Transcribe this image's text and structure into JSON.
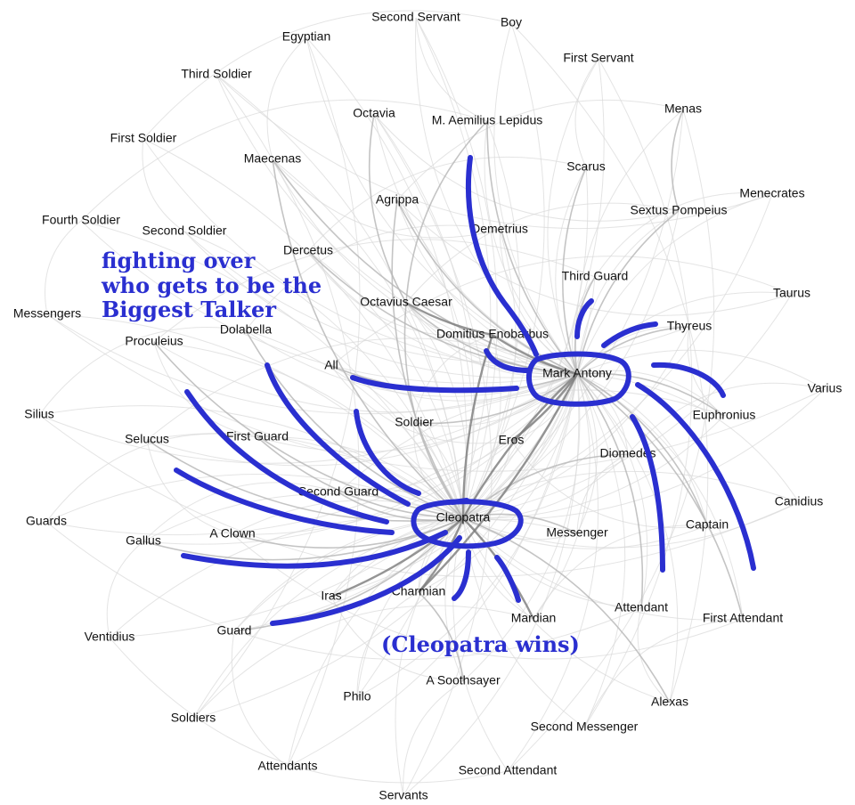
{
  "colors": {
    "annotation": "#2a2fd0",
    "edge_dark": "#7a7a7a",
    "edge_light": "#d9d9d9"
  },
  "annotations": {
    "headline": [
      "fighting over",
      "who gets to be the",
      "Biggest Talker"
    ],
    "verdict": "(Cleopatra wins)"
  },
  "nodes": [
    {
      "id": "second-servant",
      "label": "Second Servant"
    },
    {
      "id": "boy",
      "label": "Boy"
    },
    {
      "id": "egyptian",
      "label": "Egyptian"
    },
    {
      "id": "first-servant",
      "label": "First Servant"
    },
    {
      "id": "third-soldier",
      "label": "Third Soldier"
    },
    {
      "id": "menas",
      "label": "Menas"
    },
    {
      "id": "octavia",
      "label": "Octavia"
    },
    {
      "id": "lepidus",
      "label": "M. Aemilius Lepidus"
    },
    {
      "id": "first-soldier",
      "label": "First Soldier"
    },
    {
      "id": "maecenas",
      "label": "Maecenas"
    },
    {
      "id": "scarus",
      "label": "Scarus"
    },
    {
      "id": "menecrates",
      "label": "Menecrates"
    },
    {
      "id": "agrippa",
      "label": "Agrippa"
    },
    {
      "id": "sextus",
      "label": "Sextus Pompeius"
    },
    {
      "id": "fourth-soldier",
      "label": "Fourth Soldier"
    },
    {
      "id": "second-soldier",
      "label": "Second Soldier"
    },
    {
      "id": "demetrius",
      "label": "Demetrius"
    },
    {
      "id": "dercetus",
      "label": "Dercetus"
    },
    {
      "id": "third-guard",
      "label": "Third Guard"
    },
    {
      "id": "taurus",
      "label": "Taurus"
    },
    {
      "id": "octavius",
      "label": "Octavius Caesar"
    },
    {
      "id": "messengers",
      "label": "Messengers"
    },
    {
      "id": "thyreus",
      "label": "Thyreus"
    },
    {
      "id": "dolabella",
      "label": "Dolabella"
    },
    {
      "id": "enobarbus",
      "label": "Domitius Enobarbus"
    },
    {
      "id": "proculeius",
      "label": "Proculeius"
    },
    {
      "id": "all",
      "label": "All"
    },
    {
      "id": "antony",
      "label": "Mark Antony"
    },
    {
      "id": "varius",
      "label": "Varius"
    },
    {
      "id": "euphronius",
      "label": "Euphronius"
    },
    {
      "id": "silius",
      "label": "Silius"
    },
    {
      "id": "soldier",
      "label": "Soldier"
    },
    {
      "id": "first-guard",
      "label": "First Guard"
    },
    {
      "id": "eros",
      "label": "Eros"
    },
    {
      "id": "selucus",
      "label": "Selucus"
    },
    {
      "id": "diomedes",
      "label": "Diomedes"
    },
    {
      "id": "second-guard",
      "label": "Second Guard"
    },
    {
      "id": "canidius",
      "label": "Canidius"
    },
    {
      "id": "cleopatra",
      "label": "Cleopatra"
    },
    {
      "id": "guards",
      "label": "Guards"
    },
    {
      "id": "captain",
      "label": "Captain"
    },
    {
      "id": "a-clown",
      "label": "A Clown"
    },
    {
      "id": "messenger",
      "label": "Messenger"
    },
    {
      "id": "gallus",
      "label": "Gallus"
    },
    {
      "id": "iras",
      "label": "Iras"
    },
    {
      "id": "charmian",
      "label": "Charmian"
    },
    {
      "id": "attendant",
      "label": "Attendant"
    },
    {
      "id": "mardian",
      "label": "Mardian"
    },
    {
      "id": "first-attendant",
      "label": "First Attendant"
    },
    {
      "id": "guard",
      "label": "Guard"
    },
    {
      "id": "ventidius",
      "label": "Ventidius"
    },
    {
      "id": "soothsayer",
      "label": "A Soothsayer"
    },
    {
      "id": "philo",
      "label": "Philo"
    },
    {
      "id": "alexas",
      "label": "Alexas"
    },
    {
      "id": "soldiers",
      "label": "Soldiers"
    },
    {
      "id": "second-messenger",
      "label": "Second Messenger"
    },
    {
      "id": "attendants",
      "label": "Attendants"
    },
    {
      "id": "second-attendant",
      "label": "Second Attendant"
    },
    {
      "id": "servants",
      "label": "Servants"
    }
  ]
}
